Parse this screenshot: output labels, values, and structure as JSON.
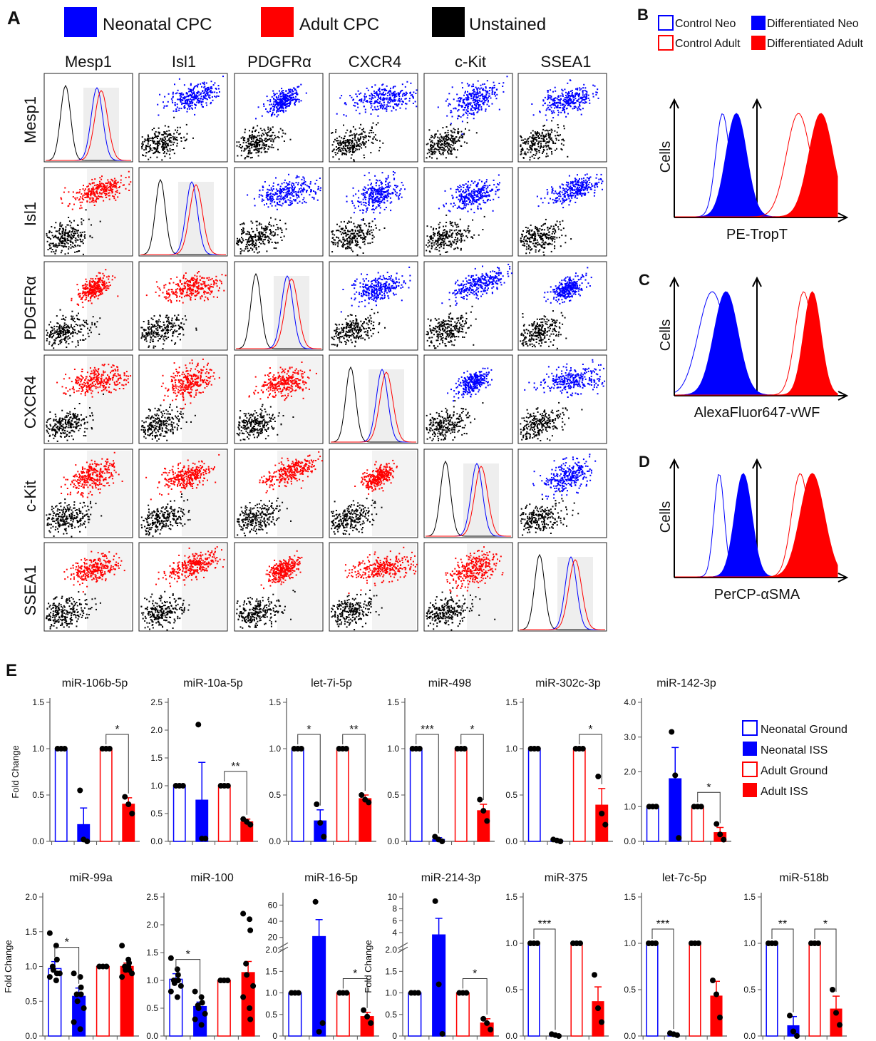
{
  "panel_letters": {
    "a": "A",
    "b": "B",
    "c": "C",
    "d": "D",
    "e": "E"
  },
  "colors": {
    "neonatal": "#0000ff",
    "adult": "#ff0000",
    "unstained": "#000000",
    "shade": "#eeeeee"
  },
  "panel_a": {
    "legend": [
      {
        "label": "Neonatal CPC",
        "color": "#0000ff"
      },
      {
        "label": "Adult CPC",
        "color": "#ff0000"
      },
      {
        "label": "Unstained",
        "color": "#000000"
      }
    ],
    "markers": [
      "Mesp1",
      "Isl1",
      "PDGFRα",
      "CXCR4",
      "c-Kit",
      "SSEA1"
    ]
  },
  "panel_b": {
    "legend": [
      {
        "label": "Control Neo",
        "color": "#0000ff",
        "filled": false
      },
      {
        "label": "Differentiated Neo",
        "color": "#0000ff",
        "filled": true
      },
      {
        "label": "Control Adult",
        "color": "#ff0000",
        "filled": false
      },
      {
        "label": "Differentiated Adult",
        "color": "#ff0000",
        "filled": true
      }
    ]
  },
  "flow_histograms": [
    {
      "letter": "B",
      "ylabel": "Cells",
      "xlabel": "PE-TropT"
    },
    {
      "letter": "C",
      "ylabel": "Cells",
      "xlabel": "AlexaFluor647-vWF"
    },
    {
      "letter": "D",
      "ylabel": "Cells",
      "xlabel": "PerCP-αSMA"
    }
  ],
  "panel_e_legend": [
    {
      "label": "Neonatal Ground",
      "color": "#0000ff",
      "filled": false
    },
    {
      "label": "Neonatal ISS",
      "color": "#0000ff",
      "filled": true
    },
    {
      "label": "Adult Ground",
      "color": "#ff0000",
      "filled": false
    },
    {
      "label": "Adult ISS",
      "color": "#ff0000",
      "filled": true
    }
  ],
  "chart_data": [
    {
      "type": "bar",
      "title": "miR-106b-5p",
      "ylabel": "Fold Change",
      "ylim": [
        0,
        1.5
      ],
      "yticks": [
        "0.0",
        "0.5",
        "1.0",
        "1.5"
      ],
      "categories": [
        "Neonatal Ground",
        "Neonatal ISS",
        "Adult Ground",
        "Adult ISS"
      ],
      "values": [
        1.0,
        0.18,
        1.0,
        0.4
      ],
      "errors": [
        0,
        0.18,
        0,
        0.07
      ],
      "points": [
        [
          1,
          1,
          1
        ],
        [
          0.55,
          0.02,
          0.0
        ],
        [
          1,
          1,
          1
        ],
        [
          0.48,
          0.4,
          0.3
        ]
      ],
      "significance": [
        {
          "pair": [
            2,
            3
          ],
          "label": "*"
        }
      ]
    },
    {
      "type": "bar",
      "title": "miR-10a-5p",
      "ylabel": "",
      "ylim": [
        0,
        2.5
      ],
      "yticks": [
        "0.0",
        "0.5",
        "1.0",
        "1.5",
        "2.0",
        "2.5"
      ],
      "categories": [
        "Neonatal Ground",
        "Neonatal ISS",
        "Adult Ground",
        "Adult ISS"
      ],
      "values": [
        1.0,
        0.74,
        1.0,
        0.35
      ],
      "errors": [
        0,
        0.68,
        0,
        0.05
      ],
      "points": [
        [
          1,
          1,
          1
        ],
        [
          2.1,
          0.05,
          0.05
        ],
        [
          1,
          1,
          1
        ],
        [
          0.4,
          0.35,
          0.3
        ]
      ],
      "significance": [
        {
          "pair": [
            2,
            3
          ],
          "label": "**"
        }
      ]
    },
    {
      "type": "bar",
      "title": "let-7i-5p",
      "ylabel": "",
      "ylim": [
        0,
        1.5
      ],
      "yticks": [
        "0.0",
        "0.5",
        "1.0",
        "1.5"
      ],
      "categories": [
        "Neonatal Ground",
        "Neonatal ISS",
        "Adult Ground",
        "Adult ISS"
      ],
      "values": [
        1.0,
        0.22,
        1.0,
        0.46
      ],
      "errors": [
        0,
        0.12,
        0,
        0.04
      ],
      "points": [
        [
          1,
          1,
          1
        ],
        [
          0.4,
          0.2,
          0.05
        ],
        [
          1,
          1,
          1
        ],
        [
          0.5,
          0.45,
          0.42
        ]
      ],
      "significance": [
        {
          "pair": [
            0,
            1
          ],
          "label": "*"
        },
        {
          "pair": [
            2,
            3
          ],
          "label": "**"
        }
      ]
    },
    {
      "type": "bar",
      "title": "miR-498",
      "ylabel": "",
      "ylim": [
        0,
        1.5
      ],
      "yticks": [
        "0.0",
        "0.5",
        "1.0",
        "1.5"
      ],
      "categories": [
        "Neonatal Ground",
        "Neonatal ISS",
        "Adult Ground",
        "Adult ISS"
      ],
      "values": [
        1.0,
        0.02,
        1.0,
        0.33
      ],
      "errors": [
        0,
        0.02,
        0,
        0.07
      ],
      "points": [
        [
          1,
          1,
          1
        ],
        [
          0.05,
          0.02,
          0.0
        ],
        [
          1,
          1,
          1
        ],
        [
          0.45,
          0.33,
          0.22
        ]
      ],
      "significance": [
        {
          "pair": [
            0,
            1
          ],
          "label": "***"
        },
        {
          "pair": [
            2,
            3
          ],
          "label": "*"
        }
      ]
    },
    {
      "type": "bar",
      "title": "miR-302c-3p",
      "ylabel": "",
      "ylim": [
        0,
        1.5
      ],
      "yticks": [
        "0.0",
        "0.5",
        "1.0",
        "1.5"
      ],
      "categories": [
        "Neonatal Ground",
        "Neonatal ISS",
        "Adult Ground",
        "Adult ISS"
      ],
      "values": [
        1.0,
        0.01,
        1.0,
        0.39
      ],
      "errors": [
        0,
        0.01,
        0,
        0.18
      ],
      "points": [
        [
          1,
          1,
          1
        ],
        [
          0.02,
          0.01,
          0.0
        ],
        [
          1,
          1,
          1
        ],
        [
          0.7,
          0.3,
          0.18
        ]
      ],
      "significance": [
        {
          "pair": [
            2,
            3
          ],
          "label": "*"
        }
      ]
    },
    {
      "type": "bar",
      "title": "miR-142-3p",
      "ylabel": "",
      "ylim": [
        0,
        4.0
      ],
      "yticks": [
        "0.0",
        "1.0",
        "2.0",
        "3.0",
        "4.0"
      ],
      "categories": [
        "Neonatal Ground",
        "Neonatal ISS",
        "Adult Ground",
        "Adult ISS"
      ],
      "values": [
        1.0,
        1.8,
        1.0,
        0.25
      ],
      "errors": [
        0,
        0.9,
        0,
        0.15
      ],
      "points": [
        [
          1,
          1,
          1
        ],
        [
          3.15,
          1.9,
          0.1
        ],
        [
          1,
          1,
          1
        ],
        [
          0.5,
          0.2,
          0.05
        ]
      ],
      "significance": [
        {
          "pair": [
            2,
            3
          ],
          "label": "*"
        }
      ]
    },
    {
      "type": "bar",
      "title": "miR-99a",
      "ylabel": "Fold Change",
      "ylim": [
        0,
        2.0
      ],
      "yticks": [
        "0.0",
        "0.5",
        "1.0",
        "1.5",
        "2.0"
      ],
      "categories": [
        "Neonatal Ground",
        "Neonatal ISS",
        "Adult Ground",
        "Adult ISS"
      ],
      "values": [
        0.97,
        0.57,
        1.0,
        1.0
      ],
      "errors": [
        0.1,
        0.12,
        0,
        0.05
      ],
      "points": [
        [
          1.48,
          1.3,
          1.1,
          1.0,
          0.95,
          0.9,
          0.85,
          0.8,
          0.9
        ],
        [
          0.9,
          0.85,
          0.7,
          0.6,
          0.5,
          0.4,
          0.2,
          0.1,
          0.6
        ],
        [
          1,
          1,
          1
        ],
        [
          1.3,
          1.1,
          1.05,
          1.0,
          0.95,
          0.9,
          0.85,
          1.0,
          0.95
        ]
      ],
      "significance": [
        {
          "pair": [
            0,
            1
          ],
          "label": "*"
        }
      ]
    },
    {
      "type": "bar",
      "title": "miR-100",
      "ylabel": "",
      "ylim": [
        0,
        2.5
      ],
      "yticks": [
        "0.0",
        "0.5",
        "1.0",
        "1.5",
        "2.0",
        "2.5"
      ],
      "categories": [
        "Neonatal Ground",
        "Neonatal ISS",
        "Adult Ground",
        "Adult ISS"
      ],
      "values": [
        1.02,
        0.53,
        1.0,
        1.14
      ],
      "errors": [
        0.1,
        0.08,
        0,
        0.2
      ],
      "points": [
        [
          1.4,
          1.2,
          1.1,
          1.0,
          0.95,
          0.9,
          0.8,
          0.7,
          1.0
        ],
        [
          0.8,
          0.7,
          0.6,
          0.55,
          0.5,
          0.4,
          0.3,
          0.2,
          0.6
        ],
        [
          1,
          1,
          1
        ],
        [
          2.2,
          2.1,
          1.9,
          1.3,
          1.1,
          0.9,
          0.7,
          0.5,
          0.3
        ]
      ],
      "significance": [
        {
          "pair": [
            0,
            1
          ],
          "label": "*"
        }
      ]
    },
    {
      "type": "bar",
      "title": "miR-16-5p",
      "ylabel": "",
      "ylim": [
        0,
        70
      ],
      "yticks": [
        "0",
        "0.5",
        "1.0",
        "1.5",
        "2.0",
        "20",
        "40",
        "60"
      ],
      "axis_break": true,
      "categories": [
        "Neonatal Ground",
        "Neonatal ISS",
        "Adult Ground",
        "Adult ISS"
      ],
      "values": [
        1.0,
        21.0,
        1.0,
        0.45
      ],
      "errors": [
        0,
        21.0,
        0,
        0.1
      ],
      "points": [
        [
          1,
          1,
          1
        ],
        [
          64,
          0.1,
          0.3
        ],
        [
          1,
          1,
          1
        ],
        [
          0.6,
          0.45,
          0.3
        ]
      ],
      "significance": [
        {
          "pair": [
            2,
            3
          ],
          "label": "*"
        }
      ]
    },
    {
      "type": "bar",
      "title": "miR-214-3p",
      "ylabel": "Fold Change",
      "ylim": [
        0,
        10
      ],
      "yticks": [
        "0",
        "0.5",
        "1.0",
        "1.5",
        "2.0",
        "4",
        "6",
        "8",
        "10"
      ],
      "axis_break": true,
      "categories": [
        "Neonatal Ground",
        "Neonatal ISS",
        "Adult Ground",
        "Adult ISS"
      ],
      "values": [
        1.0,
        3.6,
        1.0,
        0.3
      ],
      "errors": [
        0,
        2.8,
        0,
        0.1
      ],
      "points": [
        [
          1,
          1,
          1
        ],
        [
          9.3,
          1.2,
          0.05
        ],
        [
          1,
          1,
          1
        ],
        [
          0.4,
          0.3,
          0.15
        ]
      ],
      "significance": [
        {
          "pair": [
            2,
            3
          ],
          "label": "*"
        }
      ]
    },
    {
      "type": "bar",
      "title": "miR-375",
      "ylabel": "",
      "ylim": [
        0,
        1.5
      ],
      "yticks": [
        "0.0",
        "0.5",
        "1.0",
        "1.5"
      ],
      "categories": [
        "Neonatal Ground",
        "Neonatal ISS",
        "Adult Ground",
        "Adult ISS"
      ],
      "values": [
        1.0,
        0.01,
        1.0,
        0.37
      ],
      "errors": [
        0,
        0.01,
        0,
        0.16
      ],
      "points": [
        [
          1,
          1,
          1
        ],
        [
          0.02,
          0.01,
          0.0
        ],
        [
          1,
          1,
          1
        ],
        [
          0.66,
          0.3,
          0.15
        ]
      ],
      "significance": [
        {
          "pair": [
            0,
            1
          ],
          "label": "***"
        }
      ]
    },
    {
      "type": "bar",
      "title": "let-7c-5p",
      "ylabel": "",
      "ylim": [
        0,
        1.5
      ],
      "yticks": [
        "0.0",
        "0.5",
        "1.0",
        "1.5"
      ],
      "categories": [
        "Neonatal Ground",
        "Neonatal ISS",
        "Adult Ground",
        "Adult ISS"
      ],
      "values": [
        1.0,
        0.02,
        1.0,
        0.43
      ],
      "errors": [
        0,
        0.01,
        0,
        0.16
      ],
      "points": [
        [
          1,
          1,
          1
        ],
        [
          0.03,
          0.02,
          0.01
        ],
        [
          1,
          1,
          1
        ],
        [
          0.6,
          0.45,
          0.2
        ]
      ],
      "significance": [
        {
          "pair": [
            0,
            1
          ],
          "label": "***"
        }
      ]
    },
    {
      "type": "bar",
      "title": "miR-518b",
      "ylabel": "",
      "ylim": [
        0,
        1.5
      ],
      "yticks": [
        "0.0",
        "0.5",
        "1.0",
        "1.5"
      ],
      "categories": [
        "Neonatal Ground",
        "Neonatal ISS",
        "Adult Ground",
        "Adult ISS"
      ],
      "values": [
        1.0,
        0.11,
        1.0,
        0.29
      ],
      "errors": [
        0,
        0.1,
        0,
        0.14
      ],
      "points": [
        [
          1,
          1,
          1
        ],
        [
          0.22,
          0.05,
          0.0
        ],
        [
          1,
          1,
          1
        ],
        [
          0.5,
          0.25,
          0.12
        ]
      ],
      "significance": [
        {
          "pair": [
            0,
            1
          ],
          "label": "**"
        },
        {
          "pair": [
            2,
            3
          ],
          "label": "*"
        }
      ]
    }
  ]
}
